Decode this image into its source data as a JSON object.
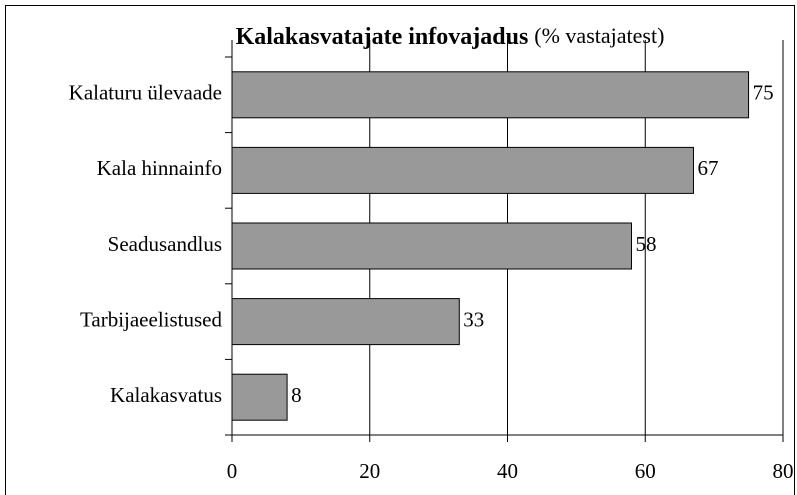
{
  "chart_data": {
    "type": "bar",
    "orientation": "horizontal",
    "title": "Kalakasvatajate infovajadus",
    "subtitle": "(% vastajatest)",
    "categories": [
      "Kalaturu ülevaade",
      "Kala hinnainfo",
      "Seadusandlus",
      "Tarbijaeelistused",
      "Kalakasvatus"
    ],
    "values": [
      75,
      67,
      58,
      33,
      8
    ],
    "color": "#999999",
    "xlim": [
      0,
      80
    ],
    "xticks": [
      0,
      20,
      40,
      60,
      80
    ],
    "grid": true
  }
}
